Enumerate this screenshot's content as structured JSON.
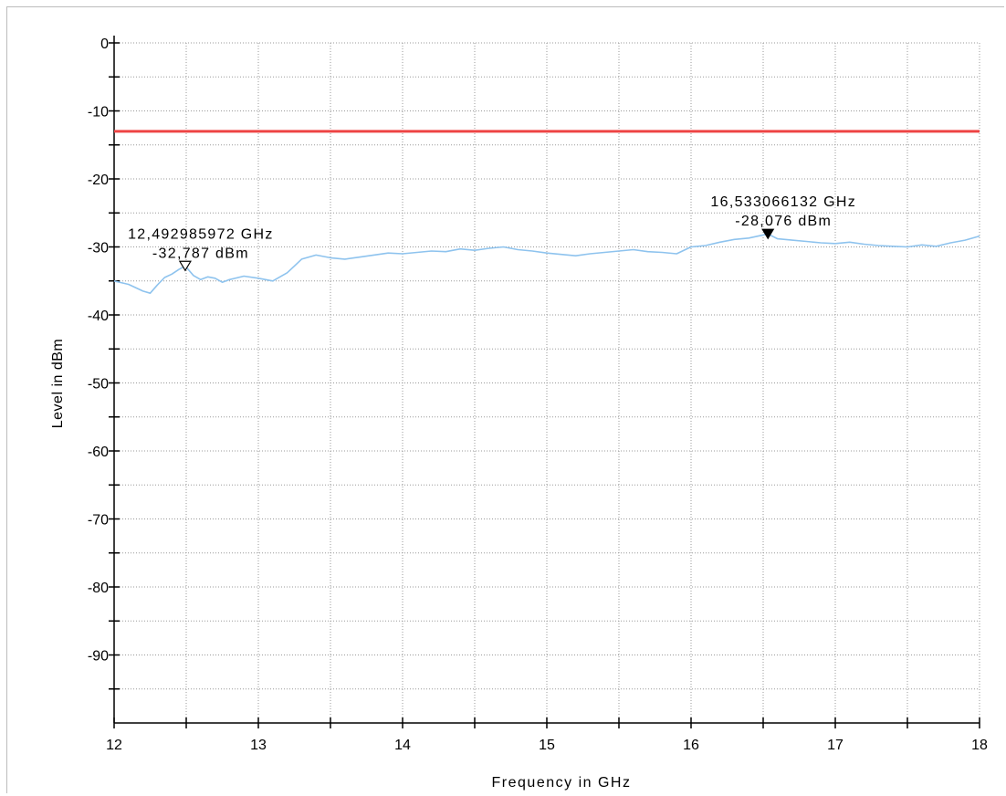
{
  "chart_data": {
    "type": "line",
    "xlabel": "Frequency in GHz",
    "ylabel": "Level in dBm",
    "xlim": [
      12,
      18
    ],
    "ylim": [
      -100,
      0
    ],
    "x_ticks": [
      "12",
      "13",
      "14",
      "15",
      "16",
      "17",
      "18"
    ],
    "y_ticks": [
      "0",
      "-10",
      "-20",
      "-30",
      "-40",
      "-50",
      "-60",
      "-70",
      "-80",
      "-90"
    ],
    "grid": true,
    "colors": {
      "trace": "#8ec3ee",
      "limit": "#ee4444",
      "grid": "#9a9a9a"
    },
    "limit_line": {
      "value": -13
    },
    "series": [
      {
        "x": [
          12.0,
          12.1,
          12.2,
          12.25,
          12.3,
          12.35,
          12.4,
          12.45,
          12.493,
          12.55,
          12.6,
          12.65,
          12.7,
          12.75,
          12.8,
          12.9,
          13.0,
          13.1,
          13.2,
          13.25,
          13.3,
          13.4,
          13.5,
          13.6,
          13.7,
          13.8,
          13.9,
          14.0,
          14.1,
          14.2,
          14.3,
          14.4,
          14.5,
          14.6,
          14.7,
          14.8,
          14.9,
          15.0,
          15.1,
          15.2,
          15.3,
          15.4,
          15.5,
          15.6,
          15.7,
          15.8,
          15.9,
          16.0,
          16.1,
          16.2,
          16.3,
          16.4,
          16.533,
          16.6,
          16.7,
          16.8,
          16.9,
          17.0,
          17.1,
          17.2,
          17.3,
          17.4,
          17.5,
          17.6,
          17.7,
          17.8,
          17.9,
          18.0
        ],
        "values": [
          -35.0,
          -35.5,
          -36.5,
          -36.8,
          -35.6,
          -34.5,
          -34.0,
          -33.3,
          -32.8,
          -34.2,
          -34.8,
          -34.4,
          -34.6,
          -35.2,
          -34.8,
          -34.3,
          -34.6,
          -35.0,
          -33.8,
          -32.8,
          -31.8,
          -31.2,
          -31.6,
          -31.8,
          -31.5,
          -31.2,
          -30.9,
          -31.0,
          -30.8,
          -30.6,
          -30.7,
          -30.3,
          -30.5,
          -30.2,
          -30.0,
          -30.4,
          -30.6,
          -30.9,
          -31.1,
          -31.3,
          -31.0,
          -30.8,
          -30.6,
          -30.4,
          -30.7,
          -30.8,
          -31.0,
          -30.0,
          -29.8,
          -29.3,
          -28.9,
          -28.7,
          -28.1,
          -28.8,
          -29.0,
          -29.2,
          -29.4,
          -29.5,
          -29.3,
          -29.6,
          -29.8,
          -29.9,
          -30.0,
          -29.7,
          -29.9,
          -29.4,
          -29.0,
          -28.4
        ]
      }
    ],
    "markers": [
      {
        "x": 12.493,
        "y": -32.787,
        "label_freq": "12,492985972 GHz",
        "label_level": "-32,787 dBm",
        "style": "open"
      },
      {
        "x": 16.533,
        "y": -28.076,
        "label_freq": "16,533066132 GHz",
        "label_level": "-28,076 dBm",
        "style": "filled"
      }
    ]
  }
}
